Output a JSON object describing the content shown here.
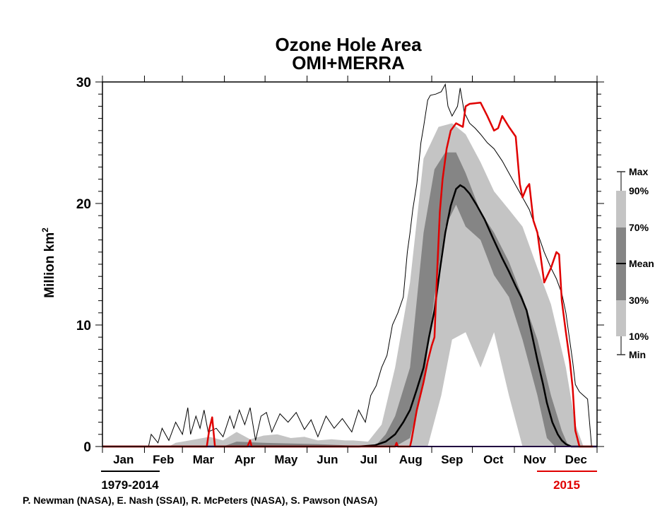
{
  "chart_data": {
    "type": "area",
    "title": "Ozone Hole Area",
    "subtitle": "OMI+MERRA",
    "ylabel": "Million km",
    "ylabel_superscript": "2",
    "xlabel": "",
    "ylim": [
      0,
      30
    ],
    "xlim_day_of_year": [
      1,
      366
    ],
    "yticks": [
      "0",
      "10",
      "20",
      "30"
    ],
    "ytick_values": [
      0,
      10,
      20,
      30
    ],
    "months": [
      "Jan",
      "Feb",
      "Mar",
      "Apr",
      "May",
      "Jun",
      "Jul",
      "Aug",
      "Sep",
      "Oct",
      "Nov",
      "Dec"
    ],
    "month_start_days": [
      1,
      32,
      60,
      91,
      121,
      152,
      182,
      213,
      244,
      274,
      305,
      335,
      366
    ],
    "climatology_label": "1979-2014",
    "year_label": "2015",
    "colors": {
      "year_line": "#e00000",
      "min_line": "#7f00ff",
      "band_outer": "#c4c4c4",
      "band_inner": "#858585",
      "mean": "#000000",
      "max": "#000000"
    },
    "legend": {
      "position": "right",
      "items": [
        "Max",
        "90%",
        "70%",
        "Mean",
        "30%",
        "10%",
        "Min"
      ]
    },
    "credit": "P. Newman (NASA), E. Nash (SSAI), R. McPeters (NASA), S. Pawson (NASA)",
    "series": [
      {
        "name": "Max",
        "points": [
          [
            1,
            0
          ],
          [
            35,
            0
          ],
          [
            37,
            1
          ],
          [
            42,
            0.3
          ],
          [
            45,
            1.5
          ],
          [
            50,
            0.5
          ],
          [
            55,
            2
          ],
          [
            60,
            1
          ],
          [
            64,
            3.2
          ],
          [
            66,
            1
          ],
          [
            70,
            2.5
          ],
          [
            73,
            1.5
          ],
          [
            76,
            3
          ],
          [
            79,
            1.2
          ],
          [
            85,
            1.5
          ],
          [
            90,
            0.8
          ],
          [
            95,
            2.5
          ],
          [
            98,
            1.5
          ],
          [
            102,
            3
          ],
          [
            106,
            1.8
          ],
          [
            110,
            3.2
          ],
          [
            114,
            0.5
          ],
          [
            118,
            2.5
          ],
          [
            122,
            2.8
          ],
          [
            126,
            1.2
          ],
          [
            132,
            2.7
          ],
          [
            138,
            2
          ],
          [
            144,
            2.8
          ],
          [
            150,
            1.4
          ],
          [
            155,
            2.2
          ],
          [
            160,
            0.8
          ],
          [
            166,
            2.5
          ],
          [
            172,
            1.5
          ],
          [
            178,
            2.3
          ],
          [
            185,
            1.2
          ],
          [
            190,
            3
          ],
          [
            195,
            2
          ],
          [
            199,
            4.2
          ],
          [
            203,
            5
          ],
          [
            207,
            6.5
          ],
          [
            211,
            7.5
          ],
          [
            215,
            10
          ],
          [
            219,
            11
          ],
          [
            223,
            12.3
          ],
          [
            226,
            16
          ],
          [
            228,
            17.6
          ],
          [
            230,
            19.5
          ],
          [
            233,
            21.6
          ],
          [
            236,
            25
          ],
          [
            238,
            26.3
          ],
          [
            241,
            28.5
          ],
          [
            243,
            28.9
          ],
          [
            247,
            29
          ],
          [
            251,
            29.2
          ],
          [
            254,
            29.8
          ],
          [
            256,
            28
          ],
          [
            259,
            27.2
          ],
          [
            263,
            28
          ],
          [
            265,
            29.5
          ],
          [
            268,
            27.5
          ],
          [
            272,
            26.6
          ],
          [
            276,
            26.2
          ],
          [
            280,
            25.7
          ],
          [
            285,
            25
          ],
          [
            290,
            24.5
          ],
          [
            296,
            23.5
          ],
          [
            301,
            22.5
          ],
          [
            306,
            21.5
          ],
          [
            311,
            20.5
          ],
          [
            316,
            19.5
          ],
          [
            322,
            17.6
          ],
          [
            327,
            16
          ],
          [
            332,
            14.7
          ],
          [
            336,
            13.8
          ],
          [
            340,
            12.6
          ],
          [
            343,
            11
          ],
          [
            345,
            9.4
          ],
          [
            348,
            7
          ],
          [
            350,
            5.1
          ],
          [
            353,
            4.5
          ],
          [
            356,
            4.2
          ],
          [
            359,
            3.9
          ],
          [
            362,
            0
          ],
          [
            366,
            0
          ]
        ]
      },
      {
        "name": "90%",
        "points": [
          [
            1,
            0
          ],
          [
            50,
            0
          ],
          [
            55,
            0.3
          ],
          [
            70,
            0.6
          ],
          [
            80,
            0.8
          ],
          [
            90,
            0.5
          ],
          [
            100,
            1.2
          ],
          [
            110,
            0.6
          ],
          [
            120,
            0.9
          ],
          [
            130,
            1
          ],
          [
            140,
            0.7
          ],
          [
            150,
            0.8
          ],
          [
            160,
            0.5
          ],
          [
            170,
            0.6
          ],
          [
            180,
            0.5
          ],
          [
            186,
            0.5
          ],
          [
            197,
            0.4
          ],
          [
            207,
            1.8
          ],
          [
            217,
            6.5
          ],
          [
            228,
            13.5
          ],
          [
            238,
            23.7
          ],
          [
            249,
            26.3
          ],
          [
            259,
            26.6
          ],
          [
            269,
            25.7
          ],
          [
            280,
            23.4
          ],
          [
            290,
            21
          ],
          [
            301,
            19.5
          ],
          [
            311,
            18.1
          ],
          [
            322,
            14.7
          ],
          [
            332,
            11.7
          ],
          [
            343,
            6.5
          ],
          [
            350,
            1.8
          ],
          [
            356,
            0
          ],
          [
            366,
            0
          ]
        ]
      },
      {
        "name": "70%",
        "points": [
          [
            1,
            0
          ],
          [
            90,
            0
          ],
          [
            100,
            0.4
          ],
          [
            120,
            0.3
          ],
          [
            160,
            0.2
          ],
          [
            202,
            0
          ],
          [
            210,
            1
          ],
          [
            217,
            2.5
          ],
          [
            228,
            6.5
          ],
          [
            238,
            17.6
          ],
          [
            246,
            22.8
          ],
          [
            254,
            24.2
          ],
          [
            262,
            24.2
          ],
          [
            269,
            22.5
          ],
          [
            280,
            19.3
          ],
          [
            290,
            17.6
          ],
          [
            301,
            15.2
          ],
          [
            311,
            12.3
          ],
          [
            322,
            8.8
          ],
          [
            332,
            4.2
          ],
          [
            340,
            1.3
          ],
          [
            345,
            0
          ],
          [
            366,
            0
          ]
        ]
      },
      {
        "name": "30%",
        "points": [
          [
            1,
            0
          ],
          [
            217,
            0
          ],
          [
            228,
            0.7
          ],
          [
            238,
            5.3
          ],
          [
            246,
            12.3
          ],
          [
            254,
            18.1
          ],
          [
            262,
            19.9
          ],
          [
            269,
            18.1
          ],
          [
            280,
            17
          ],
          [
            290,
            14.1
          ],
          [
            301,
            12.3
          ],
          [
            311,
            8.8
          ],
          [
            322,
            4.2
          ],
          [
            329,
            0.7
          ],
          [
            335,
            0
          ],
          [
            366,
            0
          ]
        ]
      },
      {
        "name": "10%",
        "points": [
          [
            1,
            0
          ],
          [
            241,
            0
          ],
          [
            251,
            4.2
          ],
          [
            259,
            8.8
          ],
          [
            269,
            9.4
          ],
          [
            280,
            6.5
          ],
          [
            290,
            9.4
          ],
          [
            301,
            4.2
          ],
          [
            311,
            0
          ],
          [
            366,
            0
          ]
        ]
      },
      {
        "name": "Mean",
        "points": [
          [
            1,
            0
          ],
          [
            190,
            0
          ],
          [
            202,
            0.1
          ],
          [
            210,
            0.4
          ],
          [
            217,
            1
          ],
          [
            223,
            2
          ],
          [
            228,
            3
          ],
          [
            233,
            4.7
          ],
          [
            238,
            6.5
          ],
          [
            242,
            9
          ],
          [
            246,
            11.2
          ],
          [
            250,
            14.5
          ],
          [
            254,
            17.6
          ],
          [
            258,
            19.8
          ],
          [
            262,
            21.2
          ],
          [
            265,
            21.5
          ],
          [
            268,
            21.3
          ],
          [
            272,
            20.8
          ],
          [
            277,
            19.9
          ],
          [
            283,
            18.7
          ],
          [
            289,
            17.2
          ],
          [
            296,
            15.5
          ],
          [
            301,
            14.4
          ],
          [
            306,
            13.2
          ],
          [
            310,
            12.3
          ],
          [
            314,
            11.2
          ],
          [
            318,
            9.2
          ],
          [
            322,
            7.1
          ],
          [
            326,
            5.2
          ],
          [
            329,
            3.6
          ],
          [
            333,
            2
          ],
          [
            337,
            1
          ],
          [
            340,
            0.5
          ],
          [
            343,
            0.2
          ],
          [
            347,
            0
          ],
          [
            366,
            0
          ]
        ]
      },
      {
        "name": "2015",
        "points": [
          [
            1,
            0
          ],
          [
            78,
            0
          ],
          [
            80,
            1.5
          ],
          [
            82,
            2.4
          ],
          [
            84,
            0
          ],
          [
            108,
            0
          ],
          [
            110,
            0.5
          ],
          [
            111,
            0
          ],
          [
            217,
            0
          ],
          [
            218,
            0.3
          ],
          [
            219,
            0
          ],
          [
            228,
            0
          ],
          [
            229,
            0.5
          ],
          [
            233,
            3
          ],
          [
            238,
            5.3
          ],
          [
            241,
            7
          ],
          [
            244,
            8.3
          ],
          [
            246,
            9
          ],
          [
            248,
            14.4
          ],
          [
            250,
            19.3
          ],
          [
            252,
            22
          ],
          [
            255,
            24.5
          ],
          [
            258,
            26
          ],
          [
            262,
            26.6
          ],
          [
            267,
            26.3
          ],
          [
            269,
            28
          ],
          [
            272,
            28.2
          ],
          [
            280,
            28.3
          ],
          [
            285,
            27.2
          ],
          [
            290,
            26
          ],
          [
            293,
            26.2
          ],
          [
            296,
            27.2
          ],
          [
            301,
            26.3
          ],
          [
            306,
            25.5
          ],
          [
            309,
            21.6
          ],
          [
            311,
            20.5
          ],
          [
            314,
            21.3
          ],
          [
            316,
            21.6
          ],
          [
            319,
            18.6
          ],
          [
            322,
            17.6
          ],
          [
            327,
            13.5
          ],
          [
            332,
            14.7
          ],
          [
            336,
            16
          ],
          [
            338,
            15.8
          ],
          [
            340,
            12
          ],
          [
            343,
            9.4
          ],
          [
            346,
            7
          ],
          [
            348,
            4.8
          ],
          [
            350,
            1.3
          ],
          [
            353,
            0
          ],
          [
            363,
            0
          ]
        ]
      },
      {
        "name": "Min",
        "points": [
          [
            1,
            0
          ],
          [
            366,
            0
          ]
        ]
      }
    ]
  }
}
